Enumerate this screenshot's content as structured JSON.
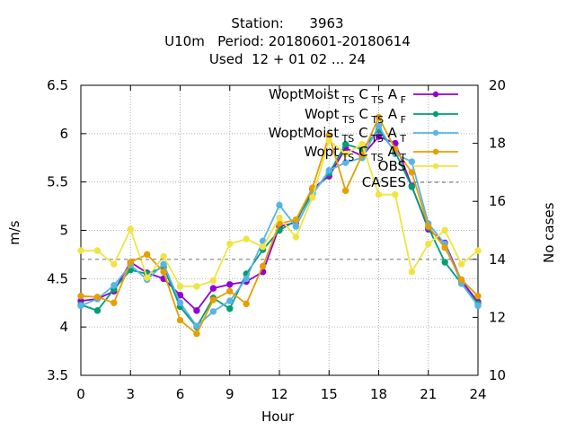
{
  "title_lines": [
    "Station:      3963",
    "U10m   Period: 20180601-20180614",
    "Used  12 + 01 02 ... 24"
  ],
  "chart_data": {
    "type": "line",
    "xlabel": "Hour",
    "ylabel": "m/s",
    "y2label": "No cases",
    "xlim": [
      0,
      24
    ],
    "ylim": [
      3.5,
      6.5
    ],
    "y2lim": [
      10,
      20
    ],
    "xticks": [
      0,
      3,
      6,
      9,
      12,
      15,
      18,
      21,
      24
    ],
    "yticks": [
      3.5,
      4,
      4.5,
      5,
      5.5,
      6,
      6.5
    ],
    "y2ticks": [
      10,
      12,
      14,
      16,
      18,
      20
    ],
    "grid": true,
    "legend_position": "top-right",
    "x": [
      0,
      1,
      2,
      3,
      4,
      5,
      6,
      7,
      8,
      9,
      10,
      11,
      12,
      13,
      14,
      15,
      16,
      17,
      18,
      19,
      20,
      21,
      22,
      23,
      24
    ],
    "series": [
      {
        "name": "WoptMoist_TS C_TS A_F",
        "color": "#9400d3",
        "marker": "circle",
        "values": [
          4.27,
          4.29,
          4.37,
          4.67,
          4.56,
          4.5,
          4.33,
          4.17,
          4.4,
          4.44,
          4.47,
          4.57,
          5.04,
          5.08,
          5.43,
          5.56,
          5.85,
          5.77,
          5.97,
          5.9,
          5.46,
          5.01,
          4.87,
          4.48,
          4.26
        ]
      },
      {
        "name": "Wopt_TS C_TS A_F",
        "color": "#009e73",
        "marker": "circle",
        "values": [
          4.23,
          4.17,
          4.39,
          4.59,
          4.55,
          4.62,
          4.21,
          4.0,
          4.3,
          4.19,
          4.55,
          4.8,
          5.0,
          5.1,
          5.39,
          5.59,
          5.89,
          5.84,
          6.04,
          5.81,
          5.45,
          5.03,
          4.67,
          4.45,
          4.24
        ]
      },
      {
        "name": "WoptMoist_TS C_TS A_T",
        "color": "#56b4e9",
        "marker": "circle",
        "values": [
          4.22,
          4.29,
          4.43,
          4.64,
          4.49,
          4.65,
          4.25,
          4.01,
          4.16,
          4.27,
          4.5,
          4.89,
          5.26,
          5.04,
          5.37,
          5.62,
          5.7,
          5.75,
          6.08,
          5.79,
          5.71,
          5.07,
          4.86,
          4.45,
          4.22
        ]
      },
      {
        "name": "Wopt_TS C_TS A_T",
        "color": "#e69f00",
        "marker": "circle",
        "values": [
          4.32,
          4.31,
          4.25,
          4.67,
          4.75,
          4.57,
          4.07,
          3.93,
          4.28,
          4.37,
          4.24,
          4.63,
          5.07,
          5.11,
          5.44,
          5.98,
          5.41,
          5.78,
          6.17,
          5.84,
          5.6,
          5.04,
          4.82,
          4.49,
          4.32
        ]
      },
      {
        "name": "OBS",
        "color": "#f0e442",
        "marker": "circle",
        "values": [
          4.79,
          4.79,
          4.65,
          5.01,
          4.51,
          4.73,
          4.42,
          4.42,
          4.48,
          4.86,
          4.91,
          4.83,
          5.13,
          4.93,
          5.34,
          5.93,
          5.79,
          5.89,
          5.37,
          5.37,
          4.57,
          4.86,
          5.0,
          4.65,
          4.79
        ]
      },
      {
        "name": "CASES",
        "color": "#808080",
        "marker": "none",
        "axis": "y2",
        "values": [
          14,
          14,
          14,
          14,
          14,
          14,
          14,
          14,
          14,
          14,
          14,
          14,
          14,
          14,
          14,
          14,
          14,
          14,
          14,
          14,
          14,
          14,
          14,
          14,
          14
        ]
      }
    ],
    "legend_entries": [
      {
        "base": "WoptMoist",
        "sub1": "TS",
        "mid1": "C",
        "sub2": "TS",
        "mid2": "A",
        "sub3": "F"
      },
      {
        "base": "Wopt",
        "sub1": "TS",
        "mid1": "C",
        "sub2": "TS",
        "mid2": "A",
        "sub3": "F"
      },
      {
        "base": "WoptMoist",
        "sub1": "TS",
        "mid1": "C",
        "sub2": "TS",
        "mid2": "A",
        "sub3": "T"
      },
      {
        "base": "Wopt",
        "sub1": "TS",
        "mid1": "C",
        "sub2": "TS",
        "mid2": "A",
        "sub3": "T"
      },
      {
        "base": "OBS"
      },
      {
        "base": "CASES"
      }
    ]
  }
}
